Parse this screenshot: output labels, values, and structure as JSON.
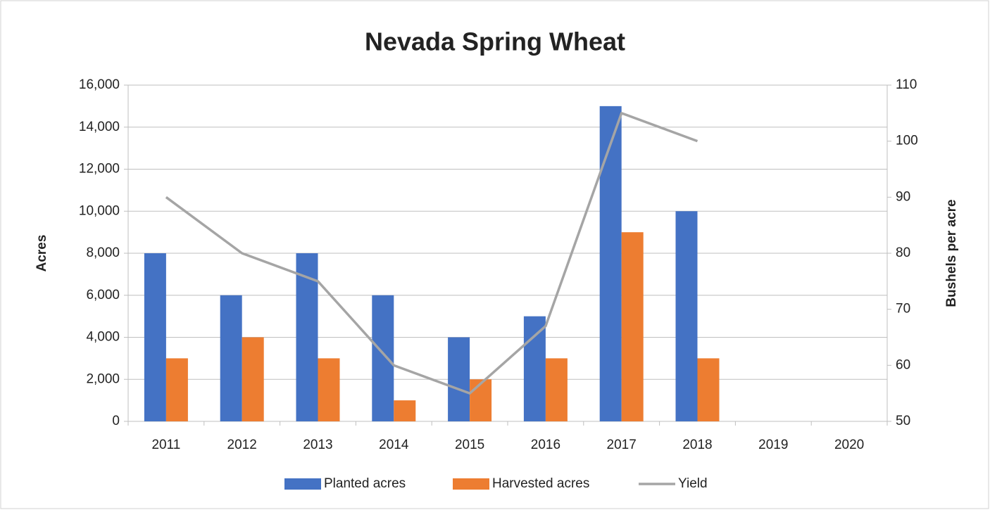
{
  "chart_data": {
    "type": "bar",
    "title": "Nevada Spring Wheat",
    "y_label": "Acres",
    "y2_label": "Bushels per acre",
    "categories": [
      "2011",
      "2012",
      "2013",
      "2014",
      "2015",
      "2016",
      "2017",
      "2018",
      "2019",
      "2020"
    ],
    "series": [
      {
        "name": "Planted acres",
        "color": "#4472c4",
        "values": [
          8000,
          6000,
          8000,
          6000,
          4000,
          5000,
          15000,
          10000,
          null,
          null
        ]
      },
      {
        "name": "Harvested acres",
        "color": "#ed7d31",
        "values": [
          3000,
          4000,
          3000,
          1000,
          2000,
          3000,
          9000,
          3000,
          null,
          null
        ]
      },
      {
        "name": "Yield",
        "color": "#a5a5a5",
        "type": "line",
        "axis": "y2",
        "values": [
          90,
          80,
          75,
          60,
          55,
          67,
          105,
          100,
          null,
          null
        ]
      }
    ],
    "ylim": [
      0,
      16000
    ],
    "yticks": [
      0,
      {
        "value": 2000,
        "label": "2,000"
      },
      {
        "value": 4000,
        "label": "4,000"
      },
      {
        "value": 6000,
        "label": "6,000"
      },
      {
        "value": 8000,
        "label": "8,000"
      },
      {
        "value": 10000,
        "label": "10,000"
      },
      {
        "value": 12000,
        "label": "12,000"
      },
      {
        "value": 14000,
        "label": "14,000"
      },
      {
        "value": 16000,
        "label": "16,000"
      }
    ],
    "y2lim": [
      50,
      110
    ],
    "y2ticks": [
      50,
      60,
      70,
      80,
      90,
      100,
      110
    ],
    "grid": true,
    "legend": "bottom"
  }
}
